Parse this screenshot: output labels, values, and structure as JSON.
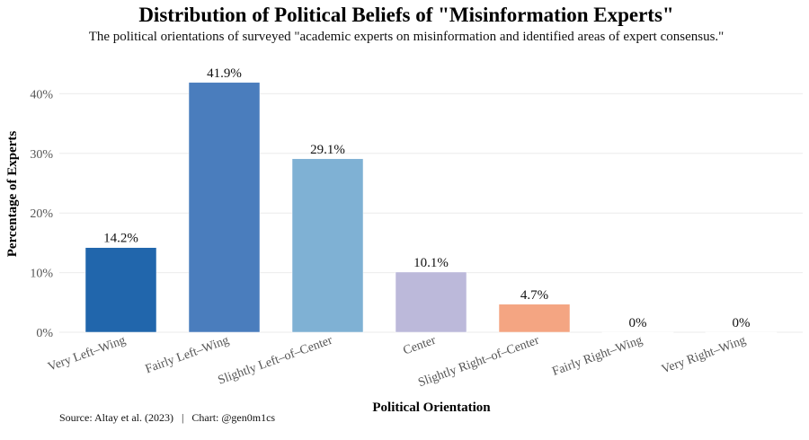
{
  "chart_data": {
    "type": "bar",
    "title": "Distribution of Political Beliefs of \"Misinformation Experts\"",
    "subtitle": "The political orientations of surveyed \"academic experts on misinformation and identified areas of expert consensus.\"",
    "xlabel": "Political Orientation",
    "ylabel": "Percentage of Experts",
    "caption": "Source: Altay et al. (2023)   |   Chart: @gen0m1cs",
    "categories": [
      "Very Left–Wing",
      "Fairly Left–Wing",
      "Slightly Left–of–Center",
      "Center",
      "Slightly Right–of–Center",
      "Fairly Right–Wing",
      "Very Right–Wing"
    ],
    "values": [
      14.2,
      41.9,
      29.1,
      10.1,
      4.7,
      0,
      0
    ],
    "data_labels": [
      "14.2%",
      "41.9%",
      "29.1%",
      "10.1%",
      "4.7%",
      "0%",
      "0%"
    ],
    "colors": [
      "#2166ac",
      "#4a7dbd",
      "#7fb1d4",
      "#bcb9da",
      "#f4a582",
      "#ffffff",
      "#ffffff"
    ],
    "yticks": [
      0,
      10,
      20,
      30,
      40
    ],
    "ytick_labels": [
      "0%",
      "10%",
      "20%",
      "30%",
      "40%"
    ],
    "ylim": [
      0,
      41.9
    ],
    "grid": true,
    "legend": "none"
  }
}
